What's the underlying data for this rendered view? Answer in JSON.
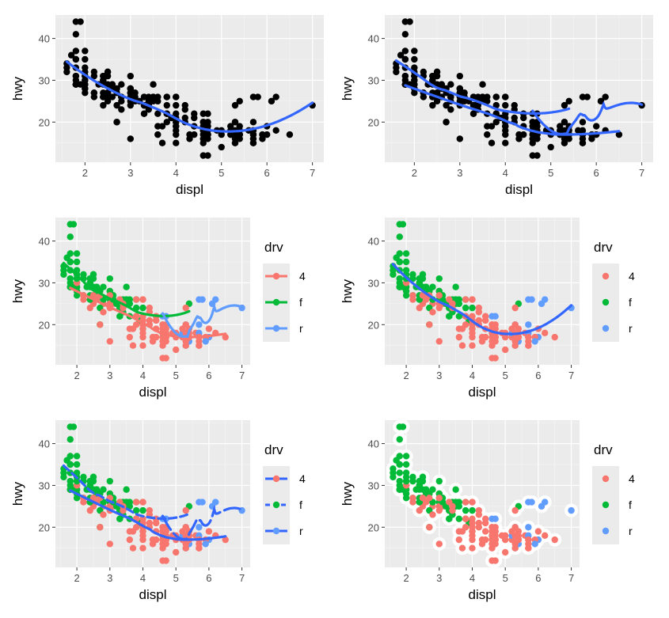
{
  "figure": {
    "theme": {
      "panel_bg": "#EBEBEB",
      "grid_major": "#FFFFFF",
      "grid_minor": "#F5F5F5",
      "point_black": "#000000",
      "smooth_blue": "#3366FF",
      "drv_colors": {
        "4": "#F8766D",
        "f": "#00BA38",
        "r": "#619CFF"
      }
    }
  },
  "chart_data": [
    {
      "type": "scatter",
      "panel": "top-left",
      "xlabel": "displ",
      "ylabel": "hwy",
      "xticks": [
        2,
        3,
        4,
        5,
        6,
        7
      ],
      "yticks": [
        20,
        30,
        40
      ],
      "xlim": [
        1.35,
        7.25
      ],
      "ylim": [
        10.4,
        45.6
      ],
      "points": "black",
      "smooth": {
        "by": "none",
        "linetype": "solid",
        "color": "#3366FF"
      },
      "legend": null
    },
    {
      "type": "scatter",
      "panel": "top-right",
      "xlabel": "displ",
      "ylabel": "hwy",
      "xticks": [
        2,
        3,
        4,
        5,
        6,
        7
      ],
      "yticks": [
        20,
        30,
        40
      ],
      "xlim": [
        1.35,
        7.25
      ],
      "ylim": [
        10.4,
        45.6
      ],
      "points": "black",
      "smooth": {
        "by": "drv",
        "linetype": "solid",
        "color": "#3366FF"
      },
      "legend": null
    },
    {
      "type": "scatter",
      "panel": "middle-left",
      "xlabel": "displ",
      "ylabel": "hwy",
      "xticks": [
        2,
        3,
        4,
        5,
        6,
        7
      ],
      "yticks": [
        20,
        30,
        40
      ],
      "xlim": [
        1.35,
        7.25
      ],
      "ylim": [
        10.4,
        45.6
      ],
      "points": "drv",
      "smooth": {
        "by": "drv",
        "linetype": "solid",
        "color": "drv"
      },
      "legend": {
        "title": "drv",
        "entries": [
          "4",
          "f",
          "r"
        ],
        "key": "point+line",
        "key_color": "drv",
        "key_linetype": "solid"
      }
    },
    {
      "type": "scatter",
      "panel": "middle-right",
      "xlabel": "displ",
      "ylabel": "hwy",
      "xticks": [
        2,
        3,
        4,
        5,
        6,
        7
      ],
      "yticks": [
        20,
        30,
        40
      ],
      "xlim": [
        1.35,
        7.25
      ],
      "ylim": [
        10.4,
        45.6
      ],
      "points": "drv",
      "smooth": {
        "by": "none",
        "linetype": "solid",
        "color": "#3366FF"
      },
      "legend": {
        "title": "drv",
        "entries": [
          "4",
          "f",
          "r"
        ],
        "key": "point",
        "key_color": "drv"
      }
    },
    {
      "type": "scatter",
      "panel": "bottom-left",
      "xlabel": "displ",
      "ylabel": "hwy",
      "xticks": [
        2,
        3,
        4,
        5,
        6,
        7
      ],
      "yticks": [
        20,
        30,
        40
      ],
      "xlim": [
        1.35,
        7.25
      ],
      "ylim": [
        10.4,
        45.6
      ],
      "points": "drv",
      "smooth": {
        "by": "drv",
        "linetype": "drv",
        "color": "#3366FF"
      },
      "legend": {
        "title": "drv",
        "entries": [
          "4",
          "f",
          "r"
        ],
        "key": "point+line",
        "key_color": "drv",
        "line_color": "#3366FF",
        "key_linetype": "drv"
      }
    },
    {
      "type": "scatter",
      "panel": "bottom-right",
      "xlabel": "displ",
      "ylabel": "hwy",
      "xticks": [
        2,
        3,
        4,
        5,
        6,
        7
      ],
      "yticks": [
        20,
        30,
        40
      ],
      "xlim": [
        1.35,
        7.25
      ],
      "ylim": [
        10.4,
        45.6
      ],
      "points": "drv-white-outline",
      "smooth": null,
      "legend": {
        "title": "drv",
        "entries": [
          "4",
          "f",
          "r"
        ],
        "key": "point",
        "key_color": "drv"
      }
    }
  ],
  "points": [
    [
      1.8,
      29,
      "f"
    ],
    [
      2.0,
      31,
      "f"
    ],
    [
      2.8,
      26,
      "f"
    ],
    [
      3.1,
      26,
      "f"
    ],
    [
      1.8,
      29,
      "4"
    ],
    [
      2.0,
      28,
      "4"
    ],
    [
      2.8,
      25,
      "4"
    ],
    [
      3.1,
      25,
      "4"
    ],
    [
      4.2,
      23,
      "4"
    ],
    [
      4.2,
      24,
      "4"
    ],
    [
      5.3,
      20,
      "r"
    ],
    [
      5.3,
      15,
      "r"
    ],
    [
      5.7,
      20,
      "r"
    ],
    [
      6.0,
      17,
      "r"
    ],
    [
      6.2,
      26,
      "r"
    ],
    [
      7.0,
      24,
      "r"
    ],
    [
      2.4,
      24,
      "4"
    ],
    [
      3.0,
      24,
      "4"
    ],
    [
      3.3,
      22,
      "f"
    ],
    [
      3.8,
      22,
      "f"
    ],
    [
      4.0,
      24,
      "f"
    ],
    [
      3.7,
      19,
      "4"
    ],
    [
      4.7,
      17,
      "4"
    ],
    [
      5.2,
      17,
      "4"
    ],
    [
      4.7,
      12,
      "4"
    ],
    [
      5.7,
      15,
      "4"
    ],
    [
      5.9,
      17,
      "4"
    ],
    [
      4.6,
      17,
      "4"
    ],
    [
      5.4,
      17,
      "4"
    ],
    [
      5.0,
      18,
      "4"
    ],
    [
      4.0,
      15,
      "4"
    ],
    [
      4.4,
      19,
      "4"
    ],
    [
      5.7,
      17,
      "4"
    ],
    [
      6.5,
      17,
      "4"
    ],
    [
      2.4,
      30,
      "f"
    ],
    [
      2.5,
      29,
      "f"
    ],
    [
      3.5,
      26,
      "f"
    ],
    [
      1.8,
      44,
      "f"
    ],
    [
      1.8,
      41,
      "f"
    ],
    [
      1.8,
      37,
      "f"
    ],
    [
      1.8,
      35,
      "f"
    ],
    [
      1.9,
      44,
      "f"
    ],
    [
      2.0,
      29,
      "f"
    ],
    [
      2.2,
      27,
      "f"
    ],
    [
      2.5,
      32,
      "f"
    ],
    [
      2.7,
      28,
      "f"
    ],
    [
      3.0,
      26,
      "f"
    ],
    [
      3.3,
      24,
      "f"
    ],
    [
      3.8,
      26,
      "f"
    ],
    [
      1.6,
      33,
      "f"
    ],
    [
      1.6,
      32,
      "f"
    ],
    [
      1.7,
      36,
      "f"
    ],
    [
      1.8,
      29,
      "f"
    ],
    [
      2.0,
      29,
      "f"
    ],
    [
      2.4,
      27,
      "f"
    ],
    [
      2.5,
      26,
      "f"
    ],
    [
      3.5,
      29,
      "f"
    ],
    [
      3.6,
      26,
      "f"
    ],
    [
      1.9,
      29,
      "f"
    ],
    [
      2.5,
      27,
      "f"
    ],
    [
      3.4,
      24,
      "f"
    ],
    [
      4.0,
      26,
      "4"
    ],
    [
      4.6,
      20,
      "4"
    ],
    [
      5.4,
      16,
      "r"
    ],
    [
      3.9,
      21,
      "f"
    ],
    [
      4.7,
      19,
      "4"
    ],
    [
      4.0,
      20,
      "4"
    ],
    [
      4.7,
      17,
      "4"
    ],
    [
      4.6,
      22,
      "r"
    ],
    [
      5.4,
      25,
      "f"
    ],
    [
      5.8,
      26,
      "r"
    ],
    [
      1.8,
      33,
      "f"
    ],
    [
      1.8,
      35,
      "f"
    ],
    [
      2.0,
      37,
      "f"
    ],
    [
      2.0,
      35,
      "f"
    ],
    [
      2.8,
      29,
      "f"
    ],
    [
      2.4,
      26,
      "f"
    ],
    [
      2.0,
      32,
      "f"
    ],
    [
      2.7,
      24,
      "f"
    ],
    [
      3.3,
      22,
      "f"
    ],
    [
      2.5,
      25,
      "4"
    ],
    [
      2.2,
      26,
      "4"
    ],
    [
      2.5,
      27,
      "4"
    ],
    [
      3.0,
      25,
      "4"
    ],
    [
      2.8,
      23,
      "4"
    ],
    [
      5.0,
      14,
      "4"
    ],
    [
      5.3,
      15,
      "4"
    ],
    [
      2.0,
      27,
      "f"
    ],
    [
      2.6,
      28,
      "f"
    ],
    [
      3.3,
      26,
      "4"
    ],
    [
      5.2,
      18,
      "r"
    ],
    [
      4.3,
      17,
      "4"
    ],
    [
      4.3,
      16,
      "4"
    ],
    [
      5.9,
      16,
      "r"
    ],
    [
      6.2,
      18,
      "4"
    ],
    [
      3.1,
      27,
      "f"
    ],
    [
      3.4,
      26,
      "f"
    ],
    [
      3.8,
      24,
      "f"
    ],
    [
      4.0,
      17,
      "4"
    ],
    [
      4.6,
      20,
      "4"
    ],
    [
      4.9,
      18,
      "4"
    ],
    [
      5.0,
      17,
      "4"
    ],
    [
      5.4,
      18,
      "4"
    ],
    [
      6.0,
      19,
      "4"
    ],
    [
      4.7,
      22,
      "r"
    ],
    [
      4.7,
      17,
      "4"
    ],
    [
      2.0,
      30,
      "f"
    ],
    [
      2.2,
      31,
      "f"
    ],
    [
      2.4,
      31,
      "f"
    ],
    [
      2.6,
      29,
      "f"
    ],
    [
      3.0,
      31,
      "f"
    ],
    [
      3.0,
      28,
      "f"
    ],
    [
      3.5,
      26,
      "f"
    ],
    [
      3.6,
      25,
      "f"
    ],
    [
      2.2,
      32,
      "f"
    ],
    [
      2.3,
      29,
      "f"
    ],
    [
      2.7,
      28,
      "f"
    ],
    [
      3.2,
      25,
      "f"
    ],
    [
      3.3,
      24,
      "f"
    ],
    [
      4.2,
      21,
      "4"
    ],
    [
      4.4,
      22,
      "4"
    ],
    [
      5.4,
      17,
      "4"
    ],
    [
      4.7,
      16,
      "4"
    ],
    [
      4.7,
      18,
      "4"
    ],
    [
      5.7,
      16,
      "4"
    ],
    [
      2.5,
      31,
      "f"
    ],
    [
      2.8,
      26,
      "f"
    ],
    [
      3.1,
      26,
      "f"
    ],
    [
      3.6,
      22,
      "f"
    ],
    [
      3.5,
      25,
      "f"
    ],
    [
      3.3,
      24,
      "f"
    ],
    [
      4.0,
      19,
      "f"
    ],
    [
      4.6,
      18,
      "f"
    ],
    [
      2.7,
      20,
      "f"
    ],
    [
      3.0,
      27,
      "f"
    ],
    [
      3.4,
      23,
      "f"
    ],
    [
      4.2,
      20,
      "4"
    ],
    [
      4.6,
      15,
      "4"
    ],
    [
      5.4,
      17,
      "4"
    ],
    [
      4.6,
      16,
      "4"
    ],
    [
      4.0,
      18,
      "4"
    ],
    [
      5.3,
      24,
      "4"
    ],
    [
      5.7,
      26,
      "r"
    ],
    [
      6.1,
      25,
      "r"
    ],
    [
      5.4,
      17,
      "4"
    ],
    [
      4.6,
      12,
      "4"
    ],
    [
      3.6,
      17,
      "4"
    ],
    [
      3.6,
      19,
      "4"
    ],
    [
      3.8,
      20,
      "4"
    ],
    [
      4.0,
      19,
      "4"
    ],
    [
      4.7,
      17,
      "4"
    ],
    [
      4.6,
      18,
      "4"
    ],
    [
      5.3,
      16,
      "4"
    ],
    [
      5.3,
      17,
      "4"
    ],
    [
      5.7,
      15,
      "4"
    ],
    [
      5.3,
      20,
      "4"
    ],
    [
      4.6,
      19,
      "4"
    ],
    [
      5.4,
      19,
      "4"
    ],
    [
      5.6,
      18,
      "4"
    ],
    [
      4.0,
      20,
      "4"
    ],
    [
      2.5,
      27,
      "4"
    ],
    [
      3.3,
      26,
      "4"
    ],
    [
      3.8,
      22,
      "4"
    ],
    [
      4.0,
      21,
      "4"
    ],
    [
      4.4,
      21,
      "4"
    ],
    [
      5.3,
      18,
      "4"
    ],
    [
      2.4,
      31,
      "f"
    ],
    [
      3.0,
      28,
      "4"
    ],
    [
      3.8,
      26,
      "4"
    ],
    [
      2.2,
      27,
      "4"
    ],
    [
      3.0,
      27,
      "4"
    ],
    [
      4.4,
      17,
      "4"
    ],
    [
      3.8,
      22,
      "4"
    ],
    [
      2.5,
      32,
      "f"
    ],
    [
      2.0,
      30,
      "4"
    ],
    [
      2.4,
      30,
      "f"
    ],
    [
      2.0,
      28,
      "f"
    ],
    [
      2.4,
      29,
      "f"
    ],
    [
      3.0,
      28,
      "f"
    ],
    [
      1.8,
      31,
      "f"
    ],
    [
      1.8,
      31,
      "f"
    ],
    [
      2.0,
      33,
      "f"
    ],
    [
      2.4,
      26,
      "f"
    ],
    [
      2.6,
      29,
      "f"
    ],
    [
      2.8,
      26,
      "f"
    ],
    [
      3.1,
      27,
      "f"
    ],
    [
      1.8,
      29,
      "f"
    ],
    [
      1.8,
      30,
      "f"
    ],
    [
      2.0,
      31,
      "f"
    ],
    [
      2.5,
      27,
      "f"
    ],
    [
      2.7,
      27,
      "4"
    ],
    [
      2.7,
      20,
      "4"
    ],
    [
      3.0,
      27,
      "4"
    ],
    [
      3.4,
      25,
      "4"
    ],
    [
      4.0,
      22,
      "4"
    ],
    [
      4.7,
      19,
      "4"
    ],
    [
      5.7,
      18,
      "r"
    ],
    [
      3.7,
      15,
      "4"
    ],
    [
      4.7,
      17,
      "4"
    ],
    [
      3.0,
      16,
      "4"
    ],
    [
      5.2,
      19,
      "4"
    ],
    [
      5.7,
      17,
      "4"
    ],
    [
      3.4,
      24,
      "4"
    ],
    [
      4.0,
      26,
      "4"
    ],
    [
      4.7,
      20,
      "4"
    ],
    [
      2.5,
      27,
      "4"
    ],
    [
      1.6,
      34,
      "f"
    ],
    [
      2.6,
      26,
      "4"
    ]
  ]
}
